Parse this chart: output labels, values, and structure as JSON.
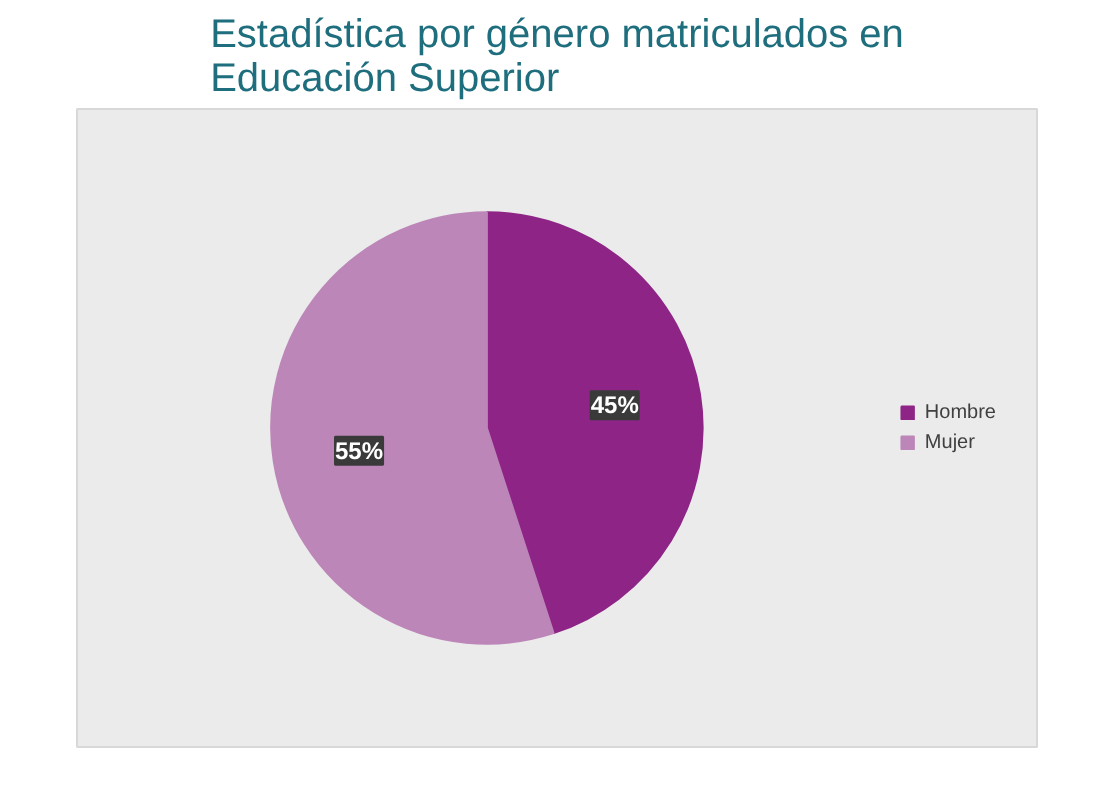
{
  "chart_data": {
    "type": "pie",
    "title": "Estadística por género matriculados en Educación Superior",
    "categories": [
      "Hombre",
      "Mujer"
    ],
    "values": [
      45,
      55
    ],
    "colors": [
      "#8e2586",
      "#bc86b8"
    ],
    "value_labels": [
      "45%",
      "55%"
    ],
    "legend": "right"
  }
}
